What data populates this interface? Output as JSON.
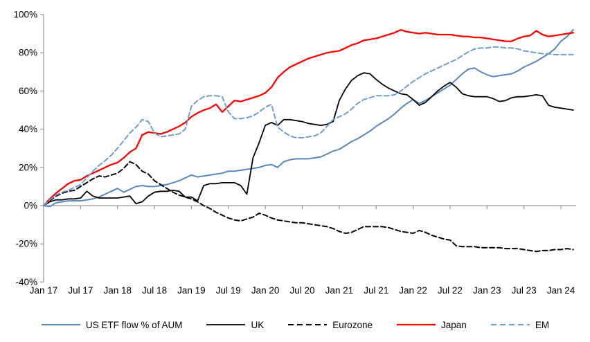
{
  "chart_data": {
    "type": "line",
    "title": "",
    "xlabel": "",
    "ylabel": "",
    "ylim": [
      -40,
      100
    ],
    "grid": false,
    "legend_position": "bottom",
    "y_tick_values": [
      100,
      80,
      60,
      40,
      20,
      0,
      -20,
      -40
    ],
    "y_tick_labels": [
      "100%",
      "80%",
      "60%",
      "40%",
      "20%",
      "0%",
      "-20%",
      "-40%"
    ],
    "x_tick_labels": [
      "Jan 17",
      "Jul 17",
      "Jan 18",
      "Jul 18",
      "Jan 19",
      "Jul 19",
      "Jan 20",
      "Jul 20",
      "Jan 21",
      "Jul 21",
      "Jan 22",
      "Jul 22",
      "Jan 23",
      "Jul 23",
      "Jan 24"
    ],
    "x_tick_month_indices": [
      0,
      6,
      12,
      18,
      24,
      30,
      36,
      42,
      48,
      54,
      60,
      66,
      72,
      78,
      84
    ],
    "x_range_months": 87,
    "series": [
      {
        "name": "US ETF flow % of AUM",
        "color": "#5588BE",
        "dash": "solid",
        "width": 2,
        "values": [
          0,
          -0.5,
          1.5,
          2,
          2.5,
          2.5,
          2.5,
          3,
          3.5,
          4.5,
          6,
          7.5,
          9,
          7,
          8.5,
          10,
          10.5,
          10,
          10,
          10.5,
          11,
          12,
          13,
          14.5,
          16,
          15,
          15.5,
          16,
          16.5,
          17,
          18,
          18,
          18.5,
          19,
          19.5,
          20,
          21,
          21.5,
          20,
          23,
          24,
          24.5,
          24.5,
          24.5,
          25,
          25.5,
          27,
          28.5,
          29.5,
          31.5,
          33.5,
          35,
          37,
          39,
          41.5,
          43.5,
          45.5,
          48,
          51,
          53.5,
          55.5,
          53.5,
          55,
          57,
          59,
          61,
          63,
          66,
          69,
          71.5,
          72,
          70,
          68.5,
          67.5,
          68,
          68.5,
          69,
          70.5,
          72.5,
          74,
          75.5,
          77.5,
          79.5,
          82,
          86,
          88.5,
          92
        ]
      },
      {
        "name": "UK",
        "color": "#000000",
        "dash": "solid",
        "width": 1.8,
        "values": [
          0,
          2,
          3,
          3,
          3.5,
          3.5,
          4,
          7.5,
          5,
          4,
          4,
          4,
          4,
          4.5,
          5,
          1,
          2,
          5,
          7,
          7.5,
          7.5,
          8,
          7.5,
          4.5,
          4.5,
          2.5,
          10.5,
          11.5,
          11.5,
          12,
          12,
          12,
          10.5,
          6,
          25,
          33,
          42,
          43.5,
          42,
          45,
          45,
          44.5,
          44,
          43,
          42.5,
          42,
          42.5,
          44,
          55,
          61,
          65.5,
          68,
          69.5,
          69,
          66,
          63.5,
          61.5,
          60,
          58.5,
          58,
          55.5,
          52.5,
          54,
          57,
          60,
          62.5,
          64.5,
          62,
          58.5,
          57.5,
          57,
          57,
          57,
          56,
          54.5,
          55,
          56.5,
          57,
          57,
          57.5,
          58,
          57.5,
          52.5,
          51.5,
          51,
          50.5,
          50
        ]
      },
      {
        "name": "Eurozone",
        "color": "#000000",
        "dash": "dashed",
        "width": 2,
        "values": [
          0,
          2.5,
          5,
          6.5,
          7.5,
          8,
          10,
          12,
          14,
          15.5,
          15,
          16,
          17,
          19.5,
          23,
          21.5,
          18,
          16.5,
          13,
          11,
          9,
          7,
          5.5,
          4.5,
          3.5,
          2,
          0,
          -1.5,
          -3.5,
          -5,
          -6.5,
          -7.5,
          -8,
          -7,
          -6,
          -4,
          -5,
          -6.5,
          -7.5,
          -8,
          -8.5,
          -9,
          -9,
          -9.5,
          -10,
          -10.5,
          -11,
          -12,
          -13.5,
          -14.5,
          -14,
          -12.5,
          -11,
          -11,
          -11,
          -11,
          -11.5,
          -12.5,
          -13.5,
          -14,
          -14.5,
          -13,
          -14,
          -15.5,
          -16.5,
          -17.5,
          -18,
          -21,
          -21.5,
          -21.5,
          -21.5,
          -22,
          -22,
          -22,
          -22,
          -22.5,
          -22.5,
          -22.5,
          -23,
          -23.5,
          -24,
          -23.5,
          -23.5,
          -23,
          -23,
          -22.5,
          -23
        ]
      },
      {
        "name": "Japan",
        "color": "#FF0000",
        "dash": "solid",
        "width": 2.3,
        "values": [
          0,
          3.5,
          6.5,
          9,
          11.5,
          13,
          13.5,
          15.5,
          17,
          18.5,
          20,
          21.5,
          22.5,
          25,
          28,
          30,
          37,
          38.5,
          38,
          37.5,
          38.5,
          40,
          41.5,
          43.5,
          46.5,
          48.5,
          50,
          51,
          53,
          49,
          52,
          55,
          54.5,
          55.5,
          56.5,
          57.5,
          59,
          62,
          67,
          70,
          72.5,
          74,
          75.5,
          77,
          78,
          79,
          80,
          80.5,
          81,
          82.5,
          84,
          85,
          86.5,
          87,
          87.5,
          88.5,
          89.5,
          90.5,
          92,
          91,
          90.5,
          90,
          90.5,
          90,
          89.5,
          89.5,
          89.5,
          89,
          88.5,
          88.5,
          88,
          88,
          87.5,
          87,
          86.5,
          86,
          86,
          87.5,
          88.5,
          89,
          91.5,
          89.5,
          88.5,
          89,
          89.5,
          90,
          90.5
        ]
      },
      {
        "name": "EM",
        "color": "#6D9DD1",
        "dash": "dashed",
        "width": 2,
        "values": [
          0,
          3,
          5.5,
          7,
          8,
          9.5,
          11,
          14.5,
          18,
          21,
          23.5,
          26.5,
          30,
          34,
          38,
          41,
          45,
          44,
          38,
          36,
          36.5,
          37,
          37.5,
          40,
          52,
          55,
          57,
          57.5,
          57.5,
          57,
          49,
          45.5,
          45.5,
          46,
          47,
          49,
          51.5,
          53,
          41,
          38.5,
          36.5,
          35.5,
          35.5,
          36,
          36.5,
          38,
          41.5,
          45,
          46.5,
          48,
          50.5,
          53.5,
          55.5,
          56.5,
          57.5,
          57.5,
          57.5,
          58,
          60,
          62.5,
          65,
          67,
          69,
          70.5,
          72,
          73.5,
          75,
          76.5,
          78.5,
          80.5,
          82,
          82.5,
          82.5,
          83,
          83,
          82.5,
          82.5,
          82,
          81,
          80.5,
          80,
          79.5,
          79.5,
          79,
          79,
          79,
          79
        ]
      }
    ],
    "axis_color": "#808080"
  }
}
